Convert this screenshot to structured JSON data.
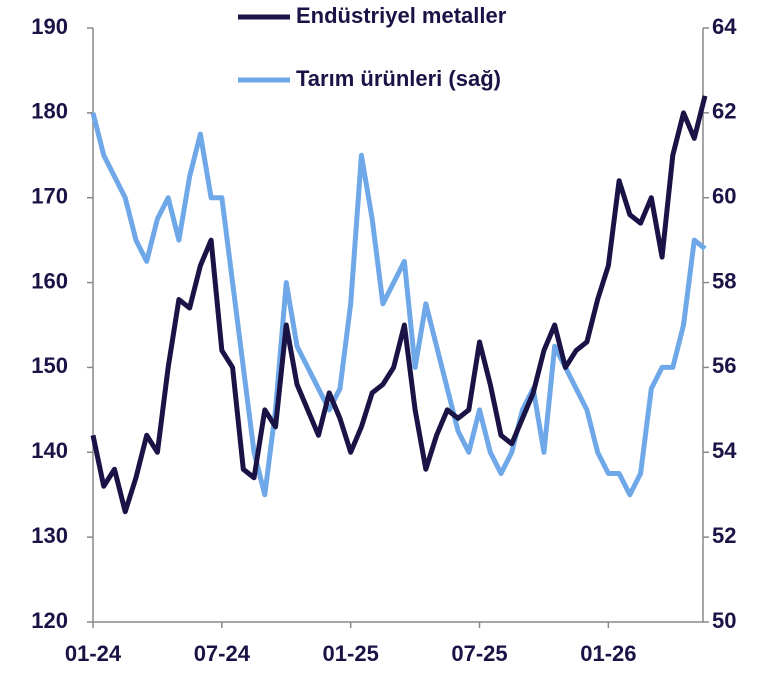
{
  "chart_data": {
    "type": "line",
    "x": [
      0,
      0.5,
      1,
      1.5,
      2,
      2.5,
      3,
      3.5,
      4,
      4.5,
      5,
      5.5,
      6,
      6.5,
      7,
      7.5,
      8,
      8.5,
      9,
      9.5,
      10,
      10.5,
      11,
      11.5,
      12,
      12.5,
      13,
      13.5,
      14,
      14.5,
      15,
      15.5,
      16,
      16.5,
      17,
      17.5,
      18,
      18.5,
      19,
      19.5,
      20,
      20.5,
      21,
      21.5,
      22,
      22.5,
      23,
      23.5,
      24,
      24.5,
      25,
      25.5,
      26,
      26.5,
      27,
      27.5,
      28,
      28.5
    ],
    "series": [
      {
        "name": "Endüstriyel metaller",
        "color": "#1a1446",
        "values": [
          142,
          136,
          138,
          133,
          137,
          142,
          140,
          150,
          158,
          157,
          162,
          165,
          152,
          150,
          138,
          137,
          145,
          143,
          155,
          148,
          145,
          142,
          147,
          144,
          140,
          143,
          147,
          148,
          150,
          155,
          145,
          138,
          142,
          145,
          144,
          145,
          153,
          148,
          142,
          141,
          144,
          147,
          152,
          155,
          150,
          152,
          153,
          158,
          162,
          172,
          168,
          167,
          170,
          163,
          175,
          180,
          177,
          182
        ]
      },
      {
        "name": "Tarım ürünleri (sağ)",
        "color": "#6fa8e8",
        "axis": "y2",
        "values": [
          62,
          61,
          60.5,
          60,
          59,
          58.5,
          59.5,
          60,
          59,
          60.5,
          61.5,
          60,
          60,
          58,
          56,
          54,
          53,
          55,
          58,
          56.5,
          56,
          55.5,
          55,
          55.5,
          57.5,
          61,
          59.5,
          57.5,
          58,
          58.5,
          56,
          57.5,
          56.5,
          55.5,
          54.5,
          54,
          55,
          54,
          53.5,
          54,
          55,
          55.5,
          54,
          56.5,
          56,
          55.5,
          55,
          54,
          53.5,
          53.5,
          53,
          53.5,
          55.5,
          56,
          56,
          57,
          59,
          58.8
        ]
      }
    ],
    "xlim": [
      0,
      28.5
    ],
    "xticks": [
      {
        "value": 0,
        "label": "01-24"
      },
      {
        "value": 6,
        "label": "07-24"
      },
      {
        "value": 12,
        "label": "01-25"
      },
      {
        "value": 18,
        "label": "07-25"
      },
      {
        "value": 24,
        "label": "01-26"
      }
    ],
    "ylim": [
      120,
      190
    ],
    "yticks": [
      120,
      130,
      140,
      150,
      160,
      170,
      180,
      190
    ],
    "y2lim": [
      50,
      64
    ],
    "y2ticks": [
      50,
      52,
      54,
      56,
      58,
      60,
      62,
      64
    ]
  }
}
